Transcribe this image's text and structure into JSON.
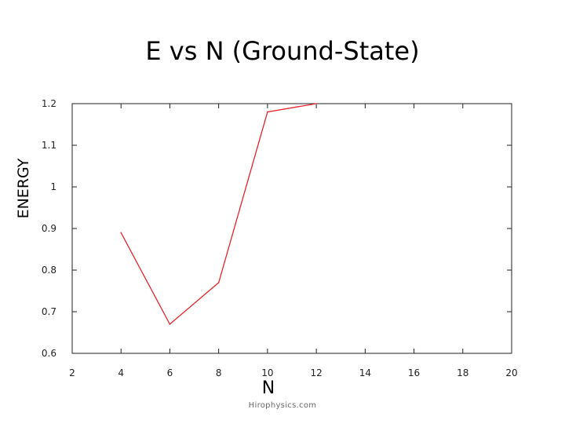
{
  "slide": {
    "title": "E vs N (Ground-State)",
    "watermark": "Hirophysics.com"
  },
  "chart_data": {
    "type": "line",
    "title": "E vs N (Ground-State)",
    "xlabel": "N",
    "ylabel": "ENERGY",
    "xlim": [
      2,
      20
    ],
    "ylim": [
      0.6,
      1.2
    ],
    "x_ticks": [
      2,
      4,
      6,
      8,
      10,
      12,
      14,
      16,
      18,
      20
    ],
    "x_tick_labels": [
      "2",
      "4",
      "6",
      "8",
      "10",
      "12",
      "14",
      "16",
      "18",
      "20"
    ],
    "y_ticks": [
      0.6,
      0.7,
      0.8,
      0.9,
      1.0,
      1.1,
      1.2
    ],
    "y_tick_labels": [
      "0.6",
      "0.7",
      "0.8",
      "0.9",
      "1",
      "1.1",
      "1.2"
    ],
    "grid": false,
    "series": [
      {
        "color": "#e8232b",
        "x": [
          4,
          6,
          8,
          10,
          12
        ],
        "y": [
          0.89,
          0.67,
          0.77,
          1.18,
          1.2
        ]
      }
    ]
  }
}
